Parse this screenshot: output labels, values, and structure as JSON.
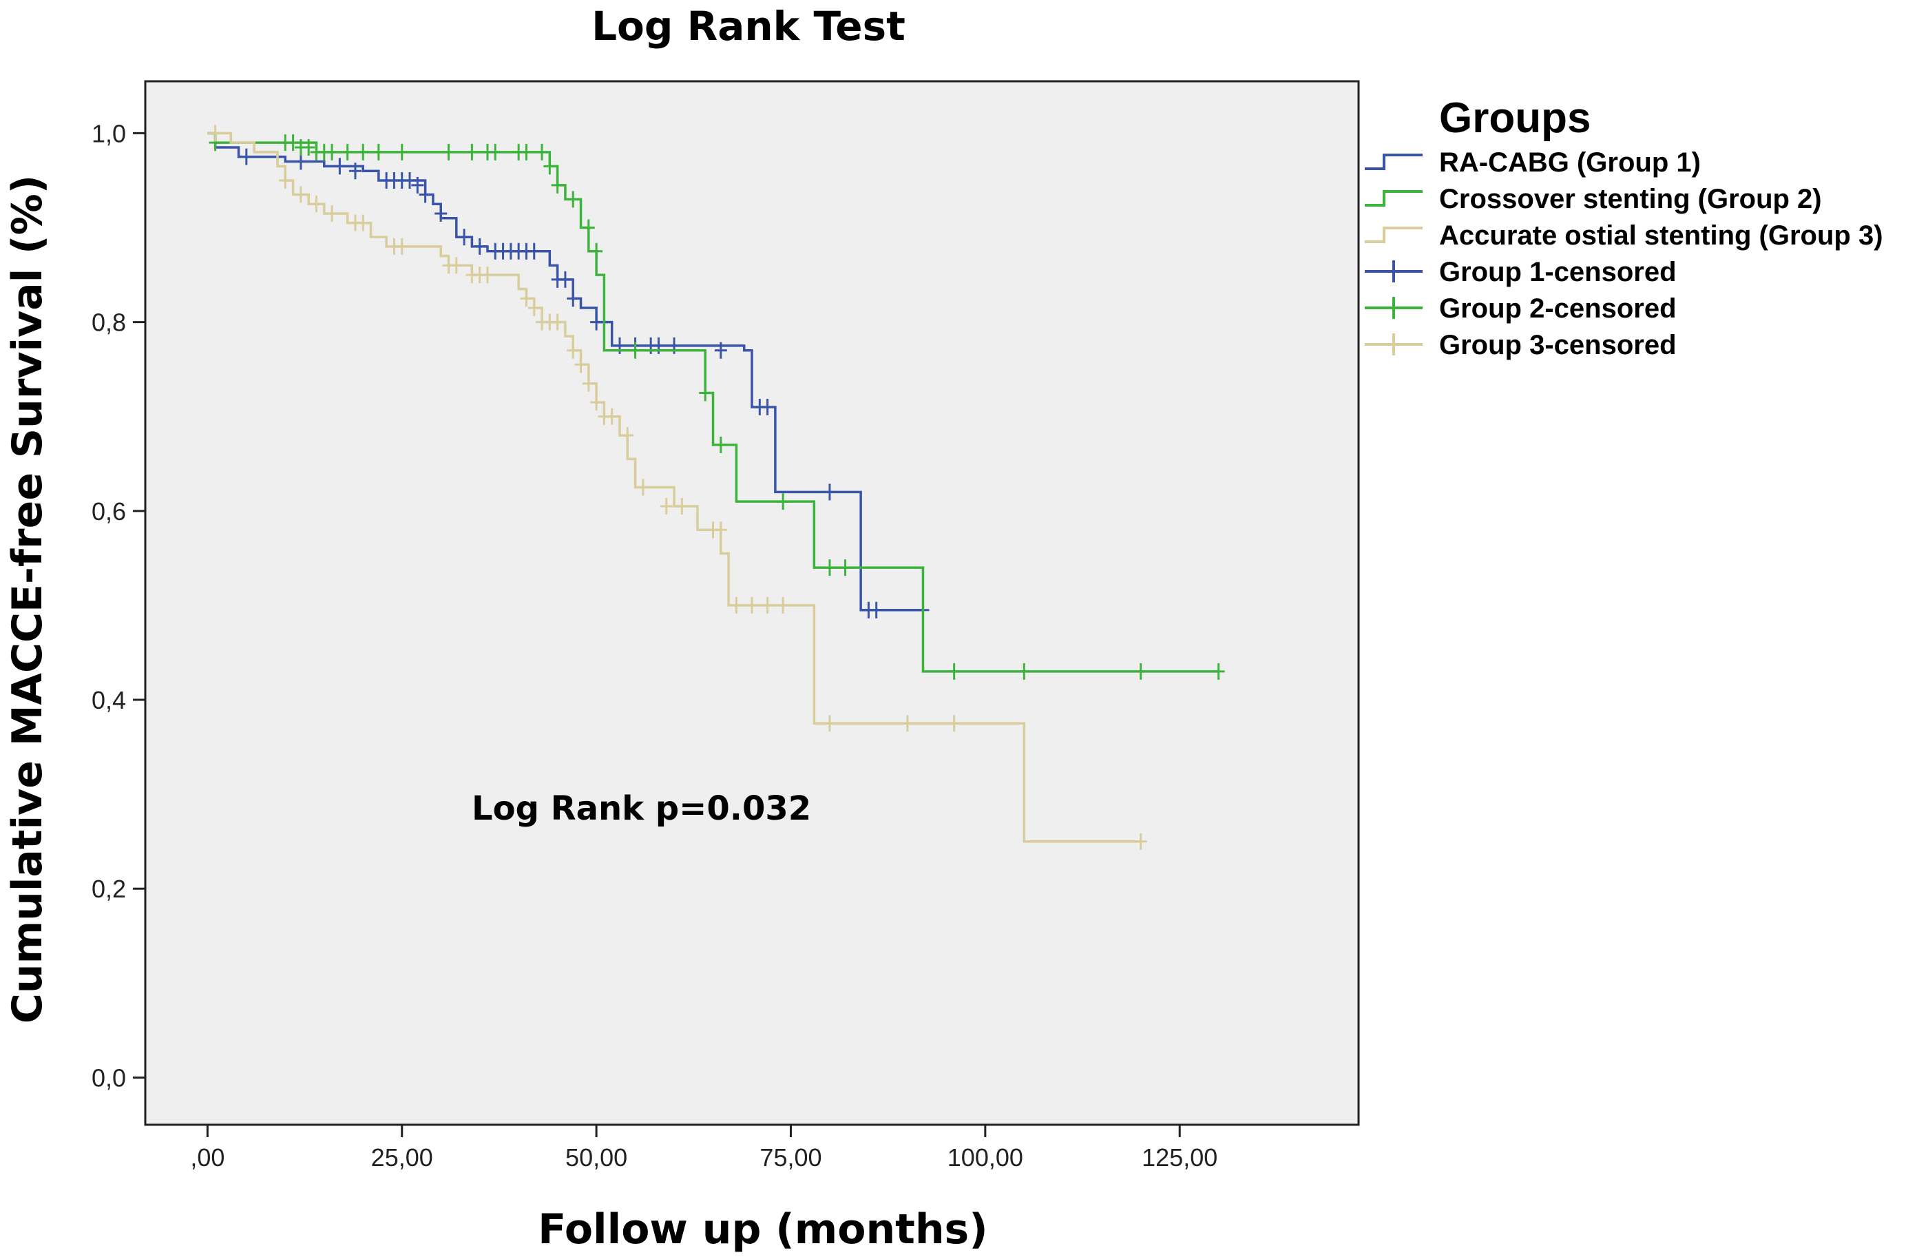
{
  "chart_data": {
    "type": "line",
    "title": "Log Rank Test",
    "xlabel": "Follow up (months)",
    "ylabel": "Cumulative MACCE-free Survival (%)",
    "xlim": [
      -8,
      148
    ],
    "ylim": [
      -0.05,
      1.055
    ],
    "x_ticks": [
      0,
      25,
      50,
      75,
      100,
      125
    ],
    "x_tick_labels": [
      ",00",
      "25,00",
      "50,00",
      "75,00",
      "100,00",
      "125,00"
    ],
    "y_ticks": [
      0,
      0.2,
      0.4,
      0.6,
      0.8,
      1.0
    ],
    "y_tick_labels": [
      "0,0",
      "0,2",
      "0,4",
      "0,6",
      "0,8",
      "1,0"
    ],
    "grid": false,
    "legend_title": "Groups",
    "legend_position": "outside-right-top",
    "annotation": "Log Rank p=0.032",
    "series": [
      {
        "name": "RA-CABG (Group 1)",
        "censored_name": "Group 1-censored",
        "color": "#3a55a8",
        "steps": [
          [
            0,
            1.0
          ],
          [
            1,
            0.985
          ],
          [
            4,
            0.975
          ],
          [
            10,
            0.97
          ],
          [
            15,
            0.965
          ],
          [
            20,
            0.96
          ],
          [
            22,
            0.95
          ],
          [
            28,
            0.935
          ],
          [
            29,
            0.925
          ],
          [
            30,
            0.91
          ],
          [
            32,
            0.89
          ],
          [
            34,
            0.88
          ],
          [
            36,
            0.875
          ],
          [
            44,
            0.86
          ],
          [
            45,
            0.845
          ],
          [
            47,
            0.825
          ],
          [
            48,
            0.815
          ],
          [
            50,
            0.8
          ],
          [
            52,
            0.775
          ],
          [
            69,
            0.77
          ],
          [
            70,
            0.71
          ],
          [
            73,
            0.62
          ],
          [
            84,
            0.495
          ],
          [
            92,
            0.495
          ]
        ],
        "censored": [
          [
            5,
            0.975
          ],
          [
            12,
            0.97
          ],
          [
            17,
            0.965
          ],
          [
            19,
            0.96
          ],
          [
            23,
            0.95
          ],
          [
            24,
            0.95
          ],
          [
            25,
            0.95
          ],
          [
            26,
            0.95
          ],
          [
            27,
            0.945
          ],
          [
            28,
            0.935
          ],
          [
            30,
            0.915
          ],
          [
            33,
            0.89
          ],
          [
            35,
            0.88
          ],
          [
            37,
            0.875
          ],
          [
            38,
            0.875
          ],
          [
            39,
            0.875
          ],
          [
            40,
            0.875
          ],
          [
            41,
            0.875
          ],
          [
            42,
            0.875
          ],
          [
            45,
            0.845
          ],
          [
            46,
            0.845
          ],
          [
            47,
            0.825
          ],
          [
            50,
            0.8
          ],
          [
            51,
            0.8
          ],
          [
            53,
            0.775
          ],
          [
            55,
            0.775
          ],
          [
            57,
            0.775
          ],
          [
            58,
            0.775
          ],
          [
            60,
            0.775
          ],
          [
            66,
            0.77
          ],
          [
            71,
            0.71
          ],
          [
            72,
            0.71
          ],
          [
            80,
            0.62
          ],
          [
            85,
            0.495
          ],
          [
            86,
            0.495
          ],
          [
            92,
            0.495
          ]
        ]
      },
      {
        "name": "Crossover stenting (Group 2)",
        "censored_name": "Group 2-censored",
        "color": "#3cb43c",
        "steps": [
          [
            0,
            1.0
          ],
          [
            1,
            0.99
          ],
          [
            14,
            0.98
          ],
          [
            44,
            0.965
          ],
          [
            45,
            0.945
          ],
          [
            46,
            0.93
          ],
          [
            48,
            0.9
          ],
          [
            49,
            0.875
          ],
          [
            50,
            0.85
          ],
          [
            51,
            0.77
          ],
          [
            64,
            0.725
          ],
          [
            65,
            0.67
          ],
          [
            68,
            0.61
          ],
          [
            78,
            0.54
          ],
          [
            92,
            0.43
          ],
          [
            130,
            0.43
          ]
        ],
        "censored": [
          [
            1,
            0.99
          ],
          [
            10,
            0.99
          ],
          [
            11,
            0.99
          ],
          [
            12,
            0.985
          ],
          [
            13,
            0.985
          ],
          [
            14,
            0.98
          ],
          [
            15,
            0.98
          ],
          [
            16,
            0.98
          ],
          [
            18,
            0.98
          ],
          [
            20,
            0.98
          ],
          [
            22,
            0.98
          ],
          [
            25,
            0.98
          ],
          [
            31,
            0.98
          ],
          [
            34,
            0.98
          ],
          [
            36,
            0.98
          ],
          [
            37,
            0.98
          ],
          [
            40,
            0.98
          ],
          [
            41,
            0.98
          ],
          [
            43,
            0.98
          ],
          [
            44,
            0.965
          ],
          [
            45,
            0.945
          ],
          [
            47,
            0.93
          ],
          [
            49,
            0.9
          ],
          [
            50,
            0.875
          ],
          [
            55,
            0.77
          ],
          [
            64,
            0.725
          ],
          [
            66,
            0.67
          ],
          [
            74,
            0.61
          ],
          [
            80,
            0.54
          ],
          [
            82,
            0.54
          ],
          [
            96,
            0.43
          ],
          [
            105,
            0.43
          ],
          [
            120,
            0.43
          ],
          [
            130,
            0.43
          ]
        ]
      },
      {
        "name": "Accurate ostial stenting (Group 3)",
        "censored_name": "Group 3-censored",
        "color": "#d9cd9b",
        "steps": [
          [
            0,
            1.0
          ],
          [
            3,
            0.99
          ],
          [
            6,
            0.98
          ],
          [
            9,
            0.965
          ],
          [
            10,
            0.95
          ],
          [
            11,
            0.935
          ],
          [
            13,
            0.925
          ],
          [
            15,
            0.915
          ],
          [
            18,
            0.905
          ],
          [
            21,
            0.89
          ],
          [
            23,
            0.88
          ],
          [
            30,
            0.87
          ],
          [
            31,
            0.86
          ],
          [
            34,
            0.85
          ],
          [
            40,
            0.835
          ],
          [
            41,
            0.825
          ],
          [
            42,
            0.815
          ],
          [
            43,
            0.8
          ],
          [
            46,
            0.785
          ],
          [
            47,
            0.77
          ],
          [
            48,
            0.755
          ],
          [
            49,
            0.735
          ],
          [
            50,
            0.715
          ],
          [
            51,
            0.7
          ],
          [
            53,
            0.68
          ],
          [
            54,
            0.655
          ],
          [
            55,
            0.625
          ],
          [
            60,
            0.605
          ],
          [
            63,
            0.58
          ],
          [
            66,
            0.555
          ],
          [
            67,
            0.5
          ],
          [
            78,
            0.375
          ],
          [
            105,
            0.25
          ],
          [
            120,
            0.25
          ]
        ],
        "censored": [
          [
            1,
            1.0
          ],
          [
            10,
            0.95
          ],
          [
            12,
            0.935
          ],
          [
            14,
            0.925
          ],
          [
            16,
            0.915
          ],
          [
            19,
            0.905
          ],
          [
            20,
            0.905
          ],
          [
            24,
            0.88
          ],
          [
            25,
            0.88
          ],
          [
            31,
            0.86
          ],
          [
            32,
            0.86
          ],
          [
            34,
            0.85
          ],
          [
            35,
            0.85
          ],
          [
            36,
            0.85
          ],
          [
            41,
            0.825
          ],
          [
            42,
            0.815
          ],
          [
            43,
            0.8
          ],
          [
            44,
            0.8
          ],
          [
            45,
            0.8
          ],
          [
            47,
            0.77
          ],
          [
            48,
            0.755
          ],
          [
            49,
            0.735
          ],
          [
            50,
            0.715
          ],
          [
            51,
            0.7
          ],
          [
            52,
            0.7
          ],
          [
            54,
            0.68
          ],
          [
            56,
            0.625
          ],
          [
            59,
            0.605
          ],
          [
            61,
            0.605
          ],
          [
            65,
            0.58
          ],
          [
            66,
            0.58
          ],
          [
            68,
            0.5
          ],
          [
            70,
            0.5
          ],
          [
            72,
            0.5
          ],
          [
            74,
            0.5
          ],
          [
            80,
            0.375
          ],
          [
            90,
            0.375
          ],
          [
            96,
            0.375
          ],
          [
            120,
            0.25
          ]
        ]
      }
    ]
  }
}
